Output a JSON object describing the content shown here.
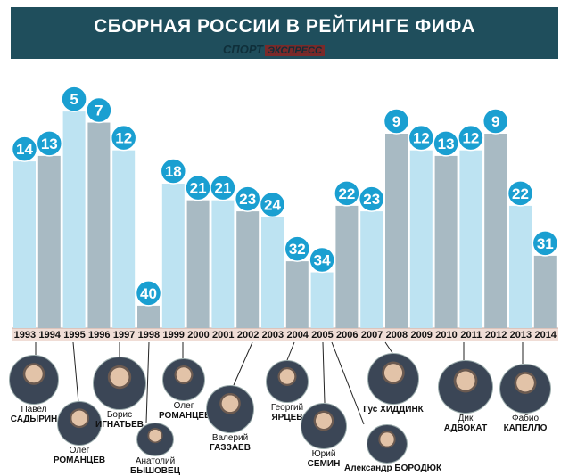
{
  "header": {
    "title": "СБОРНАЯ РОССИИ В РЕЙТИНГЕ ФИФА",
    "logo_part1": "СПОРТ",
    "logo_part2": "ЭКСПРЕСС"
  },
  "chart_data": {
    "type": "bar",
    "title": "СБОРНАЯ РОССИИ В РЕЙТИНГЕ ФИФА",
    "categories": [
      "1993",
      "1994",
      "1995",
      "1996",
      "1997",
      "1998",
      "1999",
      "2000",
      "2001",
      "2002",
      "2003",
      "2004",
      "2005",
      "2006",
      "2007",
      "2008",
      "2009",
      "2010",
      "2011",
      "2012",
      "2013",
      "2014"
    ],
    "values": [
      14,
      13,
      5,
      7,
      12,
      40,
      18,
      21,
      21,
      23,
      24,
      32,
      34,
      22,
      23,
      9,
      12,
      13,
      12,
      9,
      22,
      31
    ],
    "ylim": [
      45,
      0
    ],
    "y_inverted": true,
    "colors": {
      "light": "#bde3f2",
      "dark": "#a8bac3",
      "circle": "#1a9fd1",
      "header": "#1f4e5c",
      "year_strip": "#f0ddd6"
    }
  },
  "coaches": [
    {
      "first": "Павел",
      "last": "САДЫРИН"
    },
    {
      "first": "Олег",
      "last": "РОМАНЦЕВ"
    },
    {
      "first": "Борис",
      "last": "ИГНАТЬЕВ"
    },
    {
      "first": "Анатолий",
      "last": "БЫШОВЕЦ"
    },
    {
      "first": "Олег",
      "last": "РОМАНЦЕВ"
    },
    {
      "first": "Валерий",
      "last": "ГАЗЗАЕВ"
    },
    {
      "first": "Георгий",
      "last": "ЯРЦЕВ"
    },
    {
      "first": "Юрий",
      "last": "СЕМИН"
    },
    {
      "first": "Александр",
      "last": "БОРОДЮК"
    },
    {
      "first": "Гус",
      "last": "ХИДДИНК"
    },
    {
      "first": "Дик",
      "last": "АДВОКАТ"
    },
    {
      "first": "Фабио",
      "last": "КАПЕЛЛО"
    }
  ]
}
